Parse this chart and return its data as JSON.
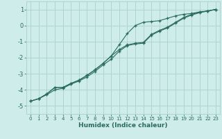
{
  "xlabel": "Humidex (Indice chaleur)",
  "xlim": [
    -0.5,
    23.5
  ],
  "ylim": [
    -5.5,
    1.5
  ],
  "yticks": [
    1,
    0,
    -1,
    -2,
    -3,
    -4,
    -5
  ],
  "xticks": [
    0,
    1,
    2,
    3,
    4,
    5,
    6,
    7,
    8,
    9,
    10,
    11,
    12,
    13,
    14,
    15,
    16,
    17,
    18,
    19,
    20,
    21,
    22,
    23
  ],
  "background_color": "#cdecea",
  "grid_color": "#afd4d0",
  "line_color": "#2a6b5e",
  "line1_x": [
    0,
    1,
    2,
    3,
    4,
    5,
    6,
    7,
    8,
    9,
    10,
    11,
    12,
    13,
    14,
    15,
    16,
    17,
    18,
    19,
    20,
    21,
    22,
    23
  ],
  "line1_y": [
    -4.7,
    -4.55,
    -4.25,
    -3.85,
    -3.85,
    -3.6,
    -3.4,
    -3.1,
    -2.75,
    -2.35,
    -1.9,
    -1.2,
    -0.5,
    0.0,
    0.2,
    0.25,
    0.3,
    0.45,
    0.6,
    0.7,
    0.75,
    0.85,
    0.9,
    1.0
  ],
  "line2_x": [
    0,
    1,
    2,
    3,
    4,
    5,
    6,
    7,
    8,
    9,
    10,
    11,
    12,
    13,
    14,
    15,
    16,
    17,
    18,
    19,
    20,
    21,
    22,
    23
  ],
  "line2_y": [
    -4.7,
    -4.55,
    -4.3,
    -4.0,
    -3.9,
    -3.65,
    -3.45,
    -3.2,
    -2.85,
    -2.45,
    -2.1,
    -1.6,
    -1.25,
    -1.15,
    -1.1,
    -0.6,
    -0.35,
    -0.15,
    0.15,
    0.45,
    0.65,
    0.8,
    0.9,
    1.0
  ],
  "line3_x": [
    0,
    1,
    2,
    3,
    4,
    5,
    6,
    7,
    8,
    9,
    10,
    11,
    12,
    13,
    14,
    15,
    16,
    17,
    18,
    19,
    20,
    21,
    22,
    23
  ],
  "line3_y": [
    -4.7,
    -4.55,
    -4.25,
    -3.85,
    -3.85,
    -3.6,
    -3.4,
    -3.1,
    -2.75,
    -2.35,
    -1.9,
    -1.5,
    -1.2,
    -1.1,
    -1.05,
    -0.55,
    -0.3,
    -0.1,
    0.2,
    0.5,
    0.7,
    0.82,
    0.91,
    1.0
  ]
}
